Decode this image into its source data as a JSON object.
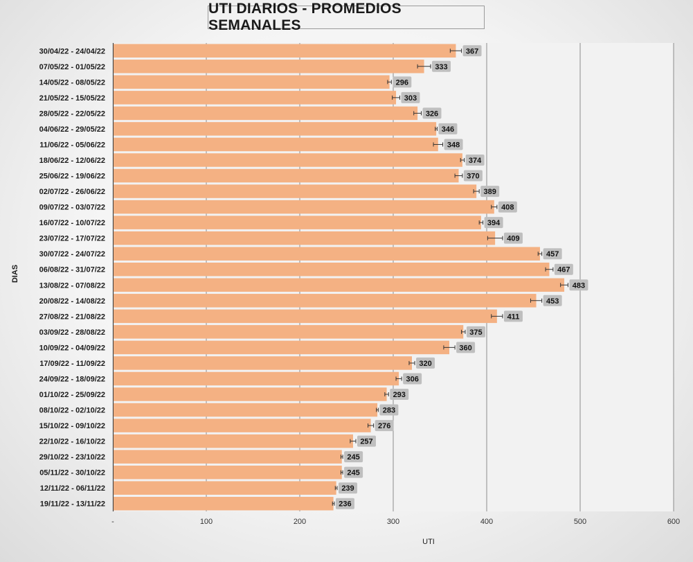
{
  "chart_data": {
    "type": "bar",
    "orientation": "horizontal",
    "title": "UTI DIARIOS - PROMEDIOS SEMANALES",
    "xlabel": "UTI",
    "ylabel": "DIAS",
    "xlim": [
      0,
      600
    ],
    "x_ticks": [
      "-",
      "100",
      "200",
      "300",
      "400",
      "500",
      "600"
    ],
    "grid": true,
    "error_bars": true,
    "bar_color": "#f4b183",
    "label_bg_color": "#bfbfbf",
    "categories": [
      "30/04/22 - 24/04/22",
      "07/05/22 - 01/05/22",
      "14/05/22 - 08/05/22",
      "21/05/22 - 15/05/22",
      "28/05/22 - 22/05/22",
      "04/06/22 - 29/05/22",
      "11/06/22 - 05/06/22",
      "18/06/22 - 12/06/22",
      "25/06/22 - 19/06/22",
      "02/07/22 - 26/06/22",
      "09/07/22 - 03/07/22",
      "16/07/22 - 10/07/22",
      "23/07/22 - 17/07/22",
      "30/07/22 - 24/07/22",
      "06/08/22 - 31/07/22",
      "13/08/22 - 07/08/22",
      "20/08/22 - 14/08/22",
      "27/08/22 - 21/08/22",
      "03/09/22 - 28/08/22",
      "10/09/22 - 04/09/22",
      "17/09/22 - 11/09/22",
      "24/09/22 - 18/09/22",
      "01/10/22 - 25/09/22",
      "08/10/22 - 02/10/22",
      "15/10/22 - 09/10/22",
      "22/10/22 - 16/10/22",
      "29/10/22 - 23/10/22",
      "05/11/22 - 30/10/22",
      "12/11/22 - 06/11/22",
      "19/11/22 - 13/11/22"
    ],
    "values": [
      367,
      333,
      296,
      303,
      326,
      346,
      348,
      374,
      370,
      389,
      408,
      394,
      409,
      457,
      467,
      483,
      453,
      411,
      375,
      360,
      320,
      306,
      293,
      283,
      276,
      257,
      245,
      245,
      239,
      236
    ],
    "errors": [
      6,
      7,
      2,
      4,
      4,
      1,
      5,
      2,
      4,
      3,
      3,
      2,
      8,
      2,
      4,
      4,
      6,
      6,
      2,
      6,
      3,
      3,
      2,
      1,
      3,
      3,
      1,
      1,
      1,
      1
    ]
  }
}
